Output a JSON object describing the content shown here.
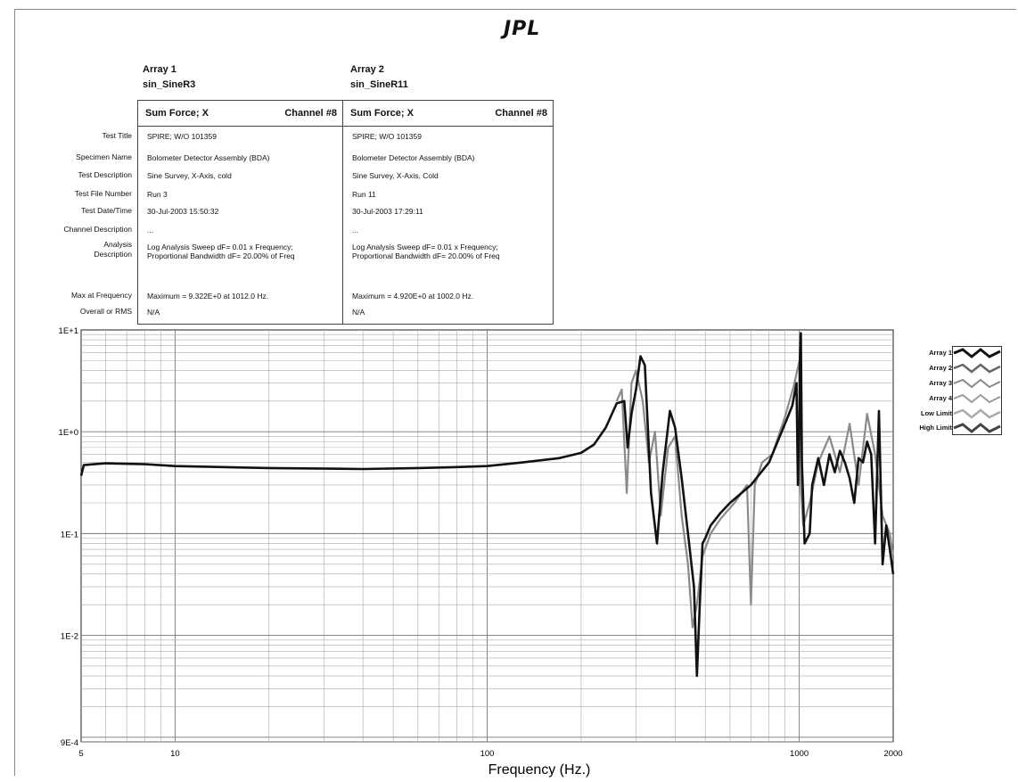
{
  "logo": "JPL",
  "arrays": [
    {
      "name": "Array 1",
      "file": "sin_SineR3",
      "title": "Sum Force; X",
      "channel": "Channel #8",
      "values": [
        "SPIRE; W/O 101359",
        "Bolometer Detector Assembly (BDA)",
        "Sine Survey, X-Axis, cold",
        "Run 3",
        "30-Jul-2003 15:50:32",
        "...",
        "Log Analysis Sweep dF= 0.01 x Frequency;",
        "Proportional Bandwidth dF= 20.00% of Freq",
        "Maximum = 9.322E+0 at 1012.0 Hz.",
        "N/A"
      ]
    },
    {
      "name": "Array 2",
      "file": "sin_SineR11",
      "title": "Sum Force; X",
      "channel": "Channel #8",
      "values": [
        "SPIRE; W/O 101359",
        "Bolometer Detector Assembly (BDA)",
        "Sine Survey, X-Axis, Cold",
        "Run 11",
        "30-Jul-2003 17:29:11",
        "...",
        "Log Analysis Sweep dF= 0.01 x Frequency;",
        "Proportional Bandwidth dF= 20.00% of Freq",
        "Maximum = 4.920E+0 at 1002.0 Hz.",
        "N/A"
      ]
    }
  ],
  "row_labels": {
    "test_title": "Test Title",
    "specimen_name": "Specimen Name",
    "test_description": "Test Description",
    "test_file_number": "Test File Number",
    "test_datetime": "Test Date/Time",
    "channel_description": "Channel Description",
    "analysis_l1": "Analysis",
    "analysis_l2": "Description",
    "max_at_frequency": "Max at Frequency",
    "overall_rms": "Overall or RMS"
  },
  "chart_data": {
    "type": "line",
    "xlabel": "Frequency (Hz.)",
    "ylabel": "",
    "x_scale": "log",
    "y_scale": "log",
    "xlim": [
      5,
      2000
    ],
    "ylim": [
      0.0009,
      10
    ],
    "x_tick_labels": [
      "5",
      "10",
      "100",
      "1000",
      "2000"
    ],
    "x_ticks": [
      5,
      10,
      100,
      1000,
      2000
    ],
    "y_tick_labels": [
      "1E+1",
      "1E+0",
      "1E-1",
      "1E-2",
      "9E-4"
    ],
    "y_ticks": [
      10,
      1,
      0.1,
      0.01,
      0.0009
    ],
    "grid": true,
    "legend": [
      "Array 1",
      "Array 2",
      "Array 3",
      "Array 4",
      "Low Limit",
      "High Limit"
    ],
    "legend_position": "right",
    "series": [
      {
        "name": "Array 1",
        "color": "#111111",
        "x": [
          5,
          5.1,
          5.5,
          6,
          8,
          10,
          20,
          40,
          60,
          80,
          100,
          130,
          170,
          200,
          220,
          240,
          260,
          275,
          282,
          290,
          300,
          310,
          320,
          335,
          350,
          365,
          385,
          400,
          420,
          440,
          460,
          470,
          480,
          490,
          500,
          520,
          560,
          600,
          700,
          800,
          900,
          950,
          980,
          990,
          1000,
          1005,
          1012,
          1020,
          1040,
          1080,
          1100,
          1150,
          1200,
          1250,
          1300,
          1350,
          1400,
          1450,
          1500,
          1550,
          1600,
          1650,
          1700,
          1750,
          1800,
          1850,
          1900,
          1950,
          2000
        ],
        "y": [
          0.37,
          0.47,
          0.48,
          0.49,
          0.48,
          0.46,
          0.44,
          0.43,
          0.44,
          0.45,
          0.46,
          0.5,
          0.55,
          0.62,
          0.75,
          1.1,
          1.9,
          2.0,
          0.7,
          1.5,
          2.6,
          5.5,
          4.5,
          0.25,
          0.08,
          0.4,
          1.6,
          1.1,
          0.35,
          0.1,
          0.03,
          0.004,
          0.02,
          0.08,
          0.09,
          0.12,
          0.16,
          0.2,
          0.3,
          0.5,
          1.2,
          1.8,
          3.0,
          0.3,
          1.0,
          5.5,
          9.3,
          0.5,
          0.08,
          0.1,
          0.3,
          0.55,
          0.3,
          0.6,
          0.4,
          0.65,
          0.5,
          0.35,
          0.2,
          0.55,
          0.5,
          0.8,
          0.6,
          0.08,
          1.6,
          0.05,
          0.12,
          0.07,
          0.04
        ]
      },
      {
        "name": "Array 2",
        "color": "#8a8a8a",
        "x": [
          260,
          270,
          280,
          290,
          300,
          315,
          330,
          345,
          360,
          380,
          400,
          420,
          440,
          455,
          470,
          490,
          520,
          560,
          620,
          680,
          700,
          720,
          760,
          820,
          900,
          960,
          1000,
          1010,
          1030,
          1080,
          1150,
          1250,
          1350,
          1450,
          1550,
          1650,
          1750,
          1850,
          1950,
          2000
        ],
        "y": [
          2.0,
          2.6,
          0.25,
          3.0,
          4.0,
          2.0,
          0.5,
          1.0,
          0.15,
          0.7,
          0.9,
          0.15,
          0.05,
          0.012,
          0.02,
          0.06,
          0.1,
          0.14,
          0.2,
          0.3,
          0.02,
          0.3,
          0.5,
          0.6,
          1.4,
          2.8,
          4.9,
          0.3,
          0.12,
          0.2,
          0.5,
          0.9,
          0.4,
          1.2,
          0.3,
          1.5,
          0.6,
          0.15,
          0.1,
          0.06
        ]
      }
    ]
  }
}
